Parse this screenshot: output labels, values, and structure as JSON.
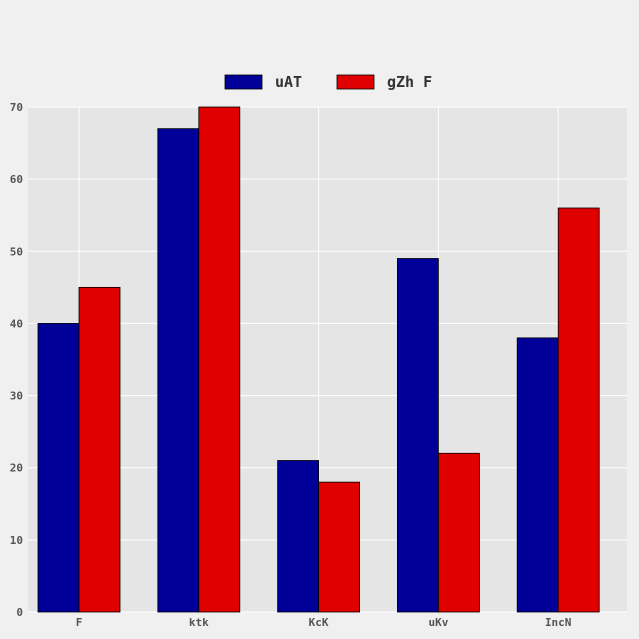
{
  "chart_data": {
    "type": "bar",
    "categories": [
      "F",
      "ktk",
      "KcK",
      "uKv",
      "IncN"
    ],
    "series": [
      {
        "name": "uAT",
        "values": [
          40,
          67,
          21,
          49,
          38
        ],
        "color": "#000099"
      },
      {
        "name": "gZh F",
        "values": [
          45,
          70,
          18,
          22,
          56
        ],
        "color": "#e00000"
      }
    ],
    "ylim": [
      0,
      70
    ],
    "yticks": [
      0,
      10,
      20,
      30,
      40,
      50,
      60,
      70
    ],
    "grid": true,
    "legend_position": "top-center",
    "title": "",
    "xlabel": "",
    "ylabel": ""
  },
  "colors": {
    "page_background": "#f0f0f0",
    "plot_background": "#e5e5e5",
    "grid": "#ffffff"
  }
}
